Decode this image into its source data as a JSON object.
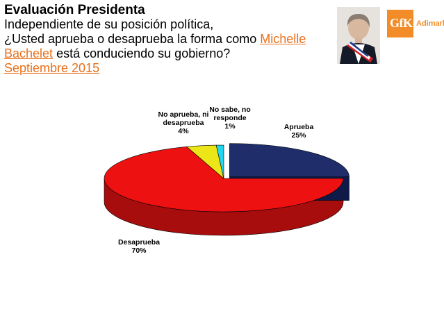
{
  "header": {
    "title": "Evaluación Presidenta",
    "line1": "Independiente de su posición política,",
    "line2_pre": "¿Usted aprueba o desaprueba la forma como ",
    "line2_link": "Michelle",
    "line3_link": "Bachelet",
    "line3_post": " está conduciendo su gobierno?",
    "date": "Septiembre 2015"
  },
  "logo": {
    "brand": "GfK",
    "name": "Adimark"
  },
  "colors": {
    "accent": "#e8701c"
  },
  "chart_data": {
    "type": "pie",
    "style": "3d",
    "slices": [
      {
        "label": "Aprueba",
        "label_lines": [
          "Aprueba"
        ],
        "value": 25,
        "value_label": "25%",
        "color": "#1f2e6b",
        "side_color": "#0f1a48"
      },
      {
        "label": "Desaprueba",
        "label_lines": [
          "Desaprueba"
        ],
        "value": 70,
        "value_label": "70%",
        "color": "#ee1111",
        "side_color": "#a80d0d"
      },
      {
        "label": "No aprueba, ni desaprueba",
        "label_lines": [
          "No aprueba, ni",
          "desaprueba"
        ],
        "value": 4,
        "value_label": "4%",
        "color": "#ece517",
        "side_color": "#9a9410"
      },
      {
        "label": "No sabe, no responde",
        "label_lines": [
          "No sabe, no",
          "responde"
        ],
        "value": 1,
        "value_label": "1%",
        "color": "#21d6ee",
        "side_color": "#139aac"
      }
    ]
  }
}
